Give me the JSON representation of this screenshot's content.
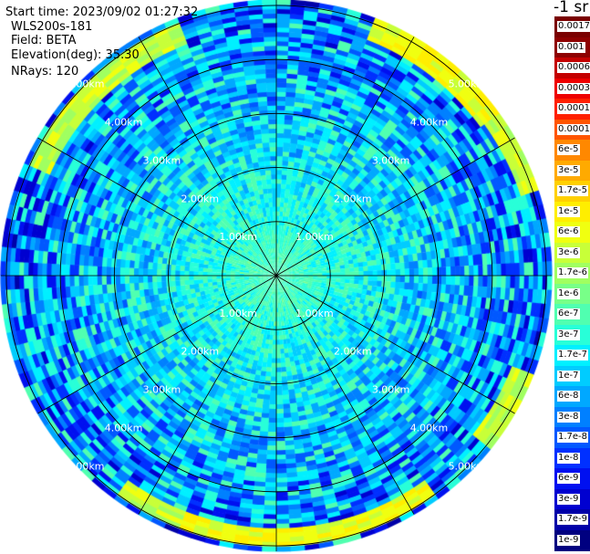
{
  "header": {
    "start_time": "Start time: 2023/09/02 01:27:32",
    "instrument": "WLS200s-181",
    "field": "Field: BETA",
    "elevation": "Elevation(deg): 35.30",
    "nrays": "NRays: 120"
  },
  "colorbar": {
    "unit": "-1 sr",
    "labels": [
      "0.0017",
      "0.001",
      "0.0006",
      "0.0003",
      "0.00017",
      "0.0001",
      "6e-5",
      "3e-5",
      "1.7e-5",
      "1e-5",
      "6e-6",
      "3e-6",
      "1.7e-6",
      "1e-6",
      "6e-7",
      "3e-7",
      "1.7e-7",
      "1e-7",
      "6e-8",
      "3e-8",
      "1.7e-8",
      "1e-8",
      "6e-9",
      "3e-9",
      "1.7e-9",
      "1e-9"
    ],
    "colors": [
      "#7a0000",
      "#8e0000",
      "#c40000",
      "#ee0000",
      "#ff2000",
      "#ff5500",
      "#ff8800",
      "#ffaa00",
      "#ffd000",
      "#ffee00",
      "#f0ff10",
      "#c8ff38",
      "#a0ff60",
      "#78ff88",
      "#50ffb0",
      "#28ffd8",
      "#00f0ff",
      "#00ccff",
      "#00a8ff",
      "#0080ff",
      "#0058ff",
      "#0030ff",
      "#0010f0",
      "#0000d0",
      "#0000a8",
      "#000080"
    ]
  },
  "chart_data": {
    "type": "heatmap",
    "subtype": "polar-ppi",
    "field": "BETA",
    "units": "-1 sr",
    "nrays": 120,
    "elevation_deg": 35.3,
    "range_rings_km": [
      1,
      2,
      3,
      4,
      5
    ],
    "ring_labels": [
      "1.00km",
      "2.00km",
      "3.00km",
      "4.00km",
      "5.00km"
    ],
    "spokes_deg": [
      0,
      30,
      60,
      90,
      120,
      150,
      180,
      210,
      240,
      270,
      300,
      330
    ],
    "max_range_km": 5.1,
    "radial_profile_colorbar_index": [
      {
        "range_km": 0.0,
        "level": 14
      },
      {
        "range_km": 0.5,
        "level": 14.5
      },
      {
        "range_km": 1.0,
        "level": 15
      },
      {
        "range_km": 1.5,
        "level": 15.5
      },
      {
        "range_km": 2.0,
        "level": 16
      },
      {
        "range_km": 2.5,
        "level": 16.5
      },
      {
        "range_km": 3.0,
        "level": 17
      },
      {
        "range_km": 3.5,
        "level": 17.5
      },
      {
        "range_km": 4.0,
        "level": 18
      },
      {
        "range_km": 4.5,
        "level": 18.5
      },
      {
        "range_km": 5.0,
        "level": 19
      },
      {
        "range_km": 5.1,
        "level": 19
      }
    ],
    "edge_bands": [
      {
        "az_from_deg": 295,
        "az_to_deg": 340,
        "range_from_km": 4.6,
        "range_to_km": 5.05,
        "level": 11
      },
      {
        "az_from_deg": 20,
        "az_to_deg": 55,
        "range_from_km": 4.7,
        "range_to_km": 5.1,
        "level": 10
      },
      {
        "az_from_deg": 55,
        "az_to_deg": 72,
        "range_from_km": 4.8,
        "range_to_km": 5.1,
        "level": 11
      },
      {
        "az_from_deg": 110,
        "az_to_deg": 130,
        "range_from_km": 4.7,
        "range_to_km": 5.1,
        "level": 11
      },
      {
        "az_from_deg": 145,
        "az_to_deg": 200,
        "range_from_km": 4.65,
        "range_to_km": 5.0,
        "level": 10
      },
      {
        "az_from_deg": 200,
        "az_to_deg": 215,
        "range_from_km": 4.7,
        "range_to_km": 5.0,
        "level": 11
      }
    ]
  }
}
